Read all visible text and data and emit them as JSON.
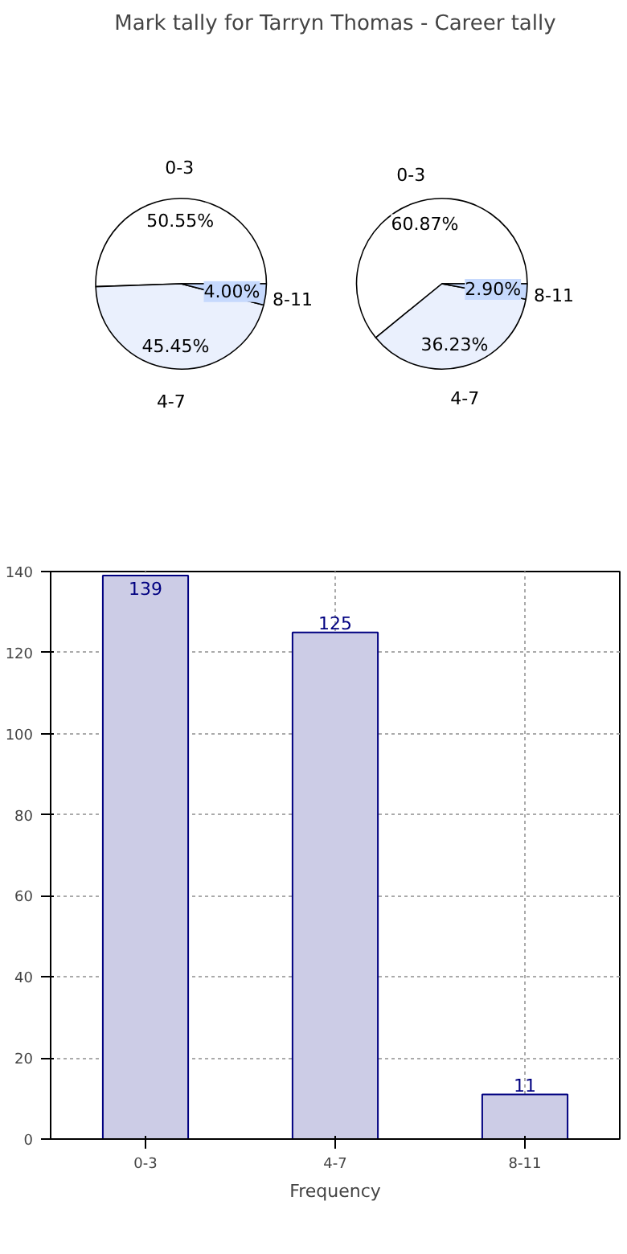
{
  "chart_data": [
    {
      "type": "pie",
      "title": "Mark tally for Tarryn Thomas - Career tally",
      "categories": [
        "0-3",
        "4-7",
        "8-11"
      ],
      "values": [
        50.55,
        45.45,
        4.0
      ],
      "value_labels": [
        "50.55%",
        "45.45%",
        "4.00%"
      ],
      "colors": [
        "#ffffff",
        "#eaf0fd",
        "#c6d9fd"
      ]
    },
    {
      "type": "pie",
      "categories": [
        "0-3",
        "4-7",
        "8-11"
      ],
      "values": [
        60.87,
        36.23,
        2.9
      ],
      "value_labels": [
        "60.87%",
        "36.23%",
        "2.90%"
      ],
      "colors": [
        "#ffffff",
        "#eaf0fd",
        "#c6d9fd"
      ]
    },
    {
      "type": "bar",
      "categories": [
        "0-3",
        "4-7",
        "8-11"
      ],
      "values": [
        139,
        125,
        11
      ],
      "color": "#cccce6",
      "xlabel": "Frequency",
      "ylim": [
        0,
        140
      ],
      "yticks": [
        0,
        20,
        40,
        60,
        80,
        100,
        120,
        140
      ],
      "grid": true,
      "data_labels": true
    }
  ]
}
